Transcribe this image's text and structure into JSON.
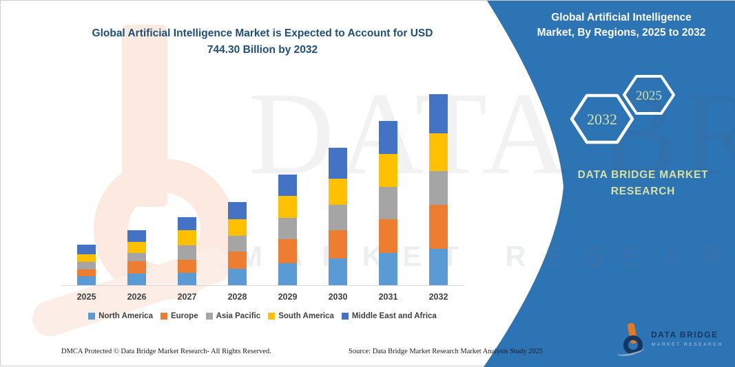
{
  "title": {
    "line1": "Global Artificial Intelligence Market is Expected to Account for USD",
    "line2": "744.30 Billion by 2032"
  },
  "panel": {
    "title_line1": "Global Artificial Intelligence",
    "title_line2": "Market, By Regions, 2025 to 2032",
    "hexagon_front_label": "2032",
    "hexagon_back_label": "2025",
    "brand_line1": "DATA BRIDGE MARKET",
    "brand_line2": "RESEARCH"
  },
  "logo": {
    "name": "DATA BRIDGE",
    "tagline": "MARKET RESEARCH"
  },
  "watermark": {
    "line1": "DATA BRIDGE",
    "line2": "MARKET RESEARCH"
  },
  "footer": {
    "left": "DMCA Protected © Data Bridge Market Research-  All Rights Reserved.",
    "right": "Source: Data Bridge Market Research  Market Analysis Study 2025"
  },
  "colors": {
    "panel_blue": "#2D74B5",
    "title_blue": "#1F4E79",
    "hexagon_text": "#D6E0A4",
    "axis_label": "#404040"
  },
  "chart_data": {
    "type": "bar",
    "stacked": true,
    "title": "Global Artificial Intelligence Market, By Regions, 2025 to 2032",
    "unit": "USD Billion",
    "categories": [
      "2025",
      "2026",
      "2027",
      "2028",
      "2029",
      "2030",
      "2031",
      "2032"
    ],
    "series": [
      {
        "name": "North America",
        "color": "#5B9BD5",
        "values": [
          34,
          45,
          49,
          65,
          85,
          105,
          126,
          141
        ]
      },
      {
        "name": "Europe",
        "color": "#ED7D31",
        "values": [
          29,
          49,
          51,
          67,
          93,
          108,
          130,
          171
        ]
      },
      {
        "name": "Asia Pacific",
        "color": "#A5A5A5",
        "values": [
          29,
          32,
          54,
          61,
          84,
          100,
          128,
          132
        ]
      },
      {
        "name": "South America",
        "color": "#FFC000",
        "values": [
          30,
          43,
          61,
          65,
          87,
          103,
          128,
          147
        ]
      },
      {
        "name": "Middle East and Africa",
        "color": "#4472C4",
        "values": [
          36,
          44,
          51,
          65,
          81,
          119,
          127,
          153
        ]
      }
    ],
    "totals": [
      158,
      213,
      266,
      323,
      430,
      535,
      639,
      744.3
    ],
    "ylim": [
      0,
      800
    ],
    "gridlines": false,
    "legend_position": "bottom"
  }
}
